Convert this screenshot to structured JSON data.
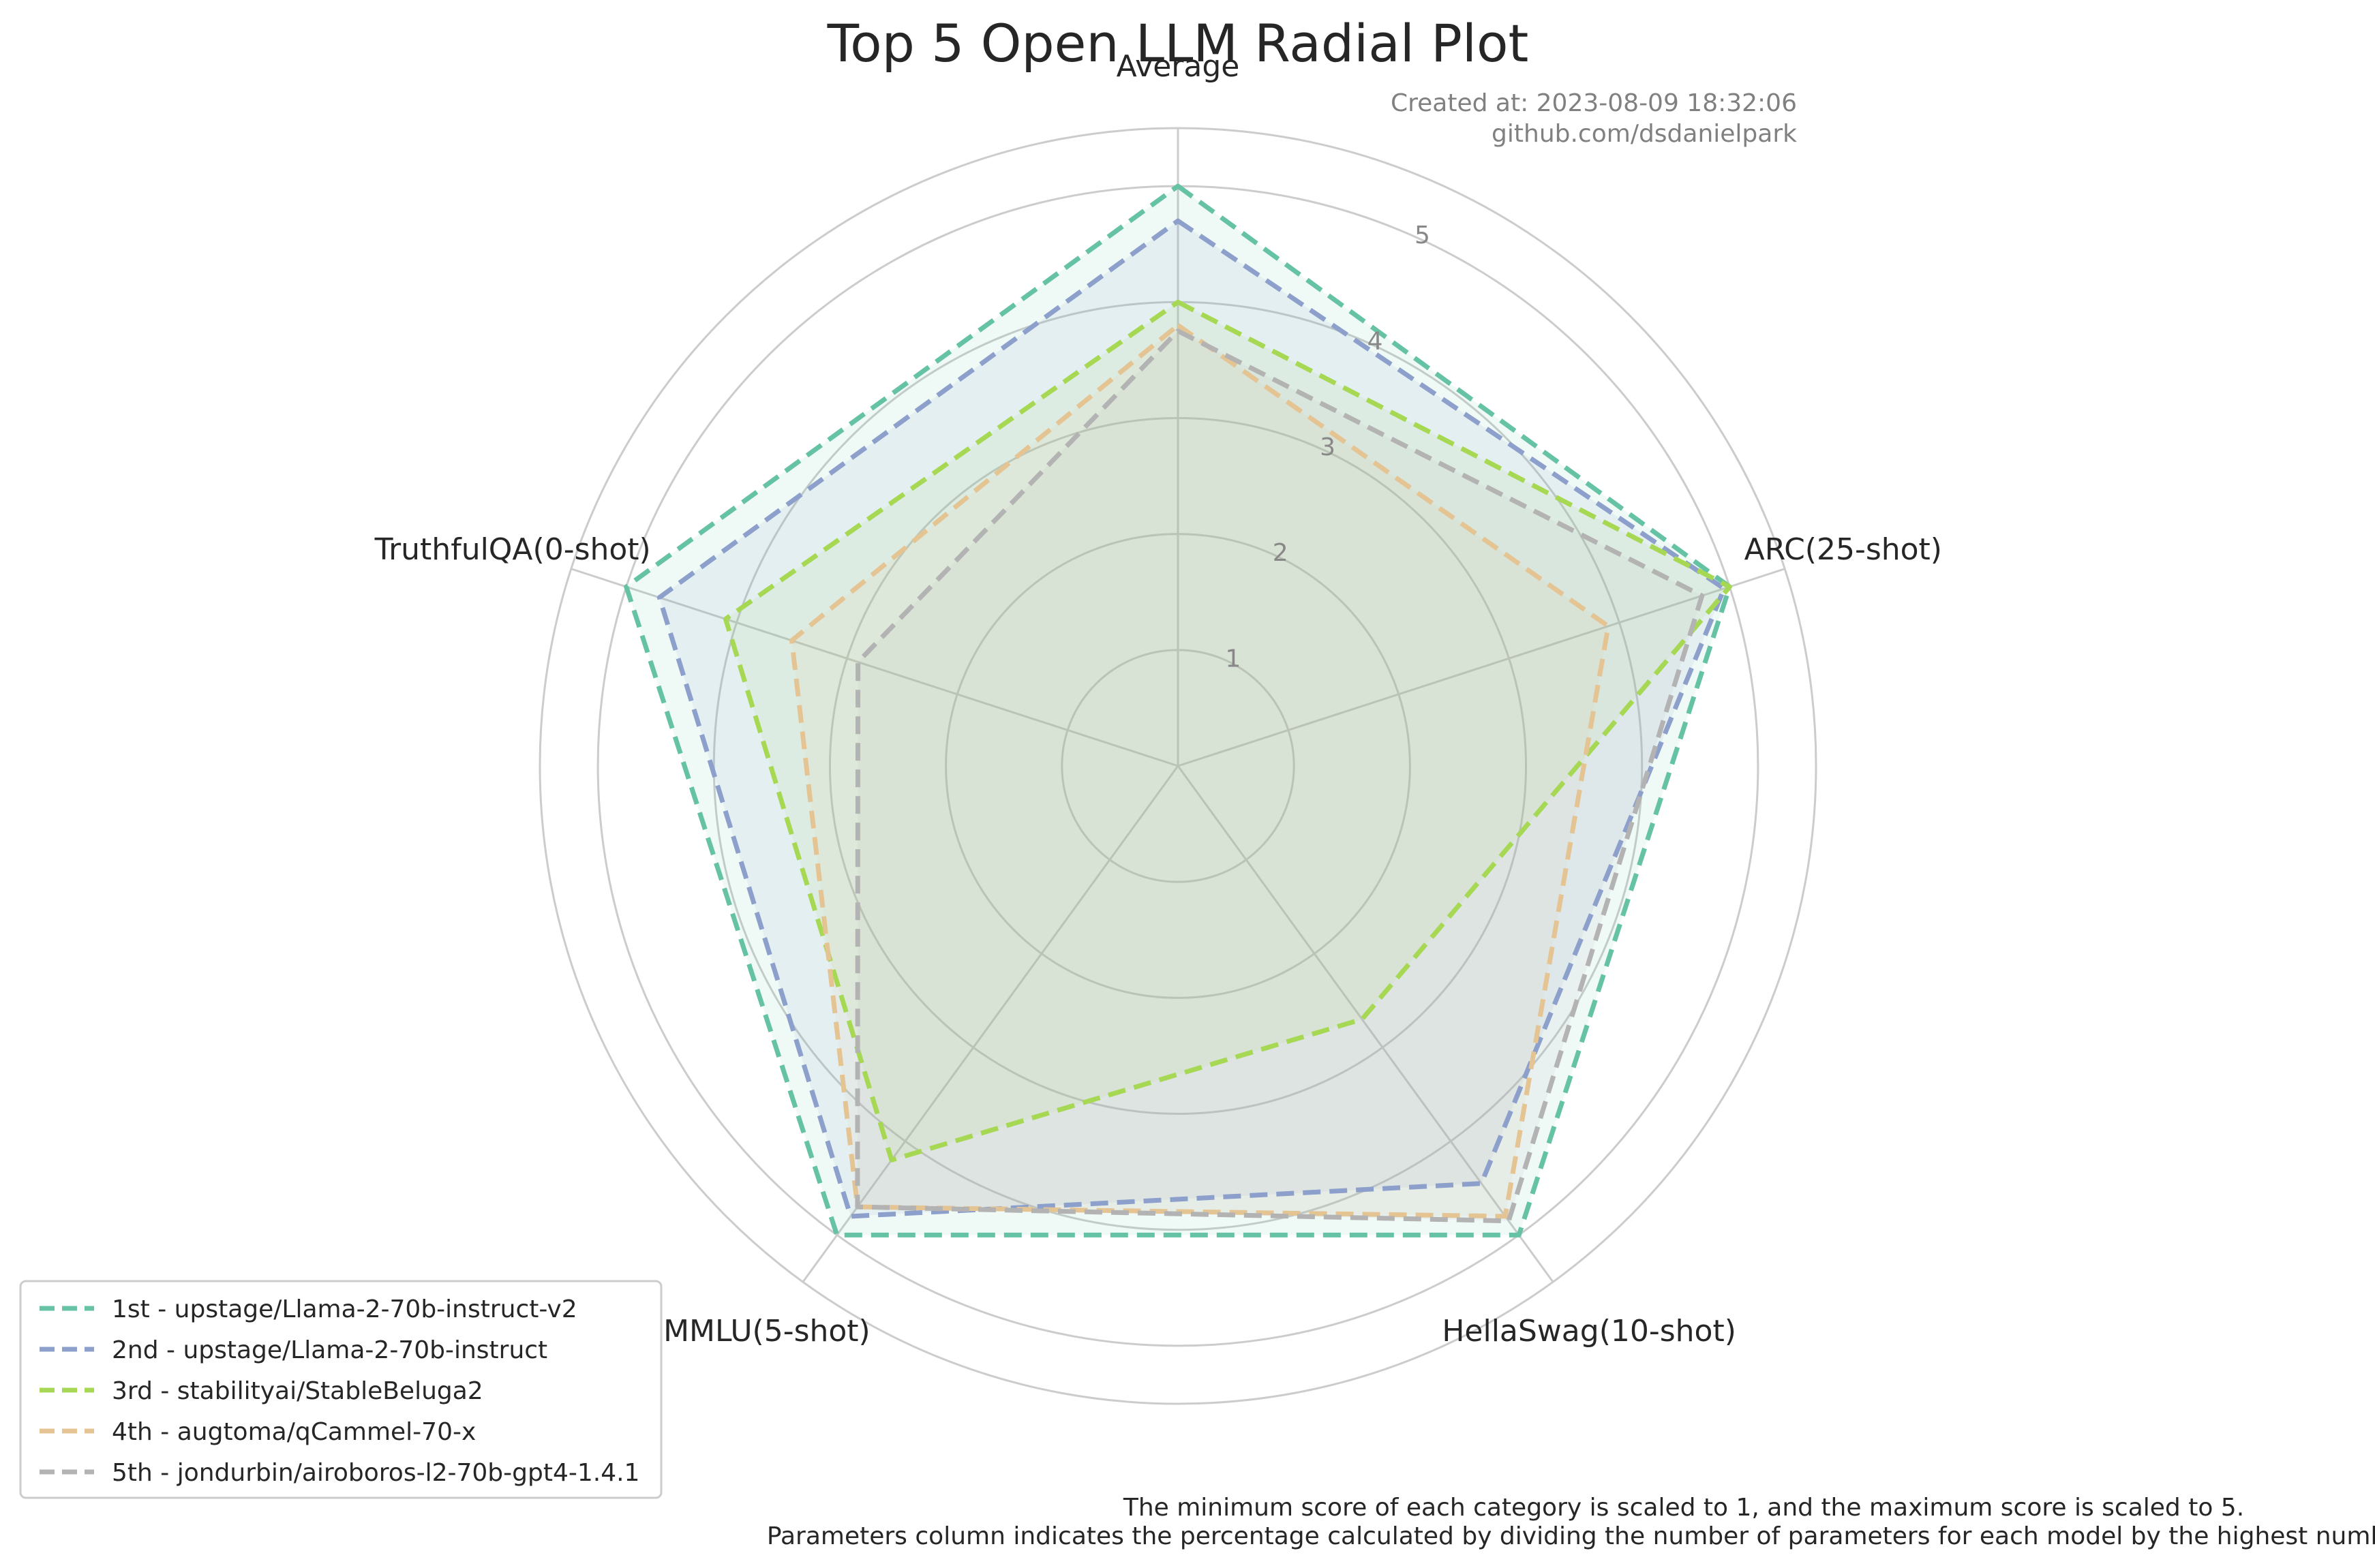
{
  "chart_data": {
    "type": "radar",
    "title": "Top 5 Open LLM Radial Plot",
    "created_at": "Created at: 2023-08-09 18:32:06",
    "source": "github.com/dsdanielpark",
    "footnote_line1": "The minimum score of each category is scaled to 1, and the maximum score is scaled to 5.",
    "footnote_line2": "Parameters column indicates the percentage calculated by dividing the number of parameters for each model by the highest number of parameters.",
    "categories": [
      "Average",
      "ARC(25-shot)",
      "HellaSwag(10-shot)",
      "MMLU(5-shot)",
      "TruthfulQA(0-shot)"
    ],
    "ticks": [
      1,
      2,
      3,
      4,
      5
    ],
    "r_range": [
      0,
      5.5
    ],
    "grid": true,
    "legend_position": "lower-left",
    "series": [
      {
        "name": "1st - upstage/Llama-2-70b-instruct-v2",
        "color": "#66c2a5",
        "values": [
          5.0,
          5.0,
          5.0,
          5.0,
          5.0
        ]
      },
      {
        "name": "2nd - upstage/Llama-2-70b-instruct",
        "color": "#8da0cb",
        "values": [
          4.7,
          4.95,
          4.45,
          4.8,
          4.7
        ]
      },
      {
        "name": "3rd - stabilityai/StableBeluga2",
        "color": "#a6d854",
        "values": [
          4.0,
          5.0,
          2.7,
          4.2,
          4.1
        ]
      },
      {
        "name": "4th - augtoma/qCammel-70-x",
        "color": "#e5c494",
        "values": [
          3.8,
          3.9,
          4.8,
          4.7,
          3.5
        ]
      },
      {
        "name": "5th - jondurbin/airoboros-l2-70b-gpt4-1.4.1",
        "color": "#b3b3b3",
        "values": [
          3.75,
          4.75,
          4.85,
          4.7,
          2.9
        ]
      }
    ]
  }
}
